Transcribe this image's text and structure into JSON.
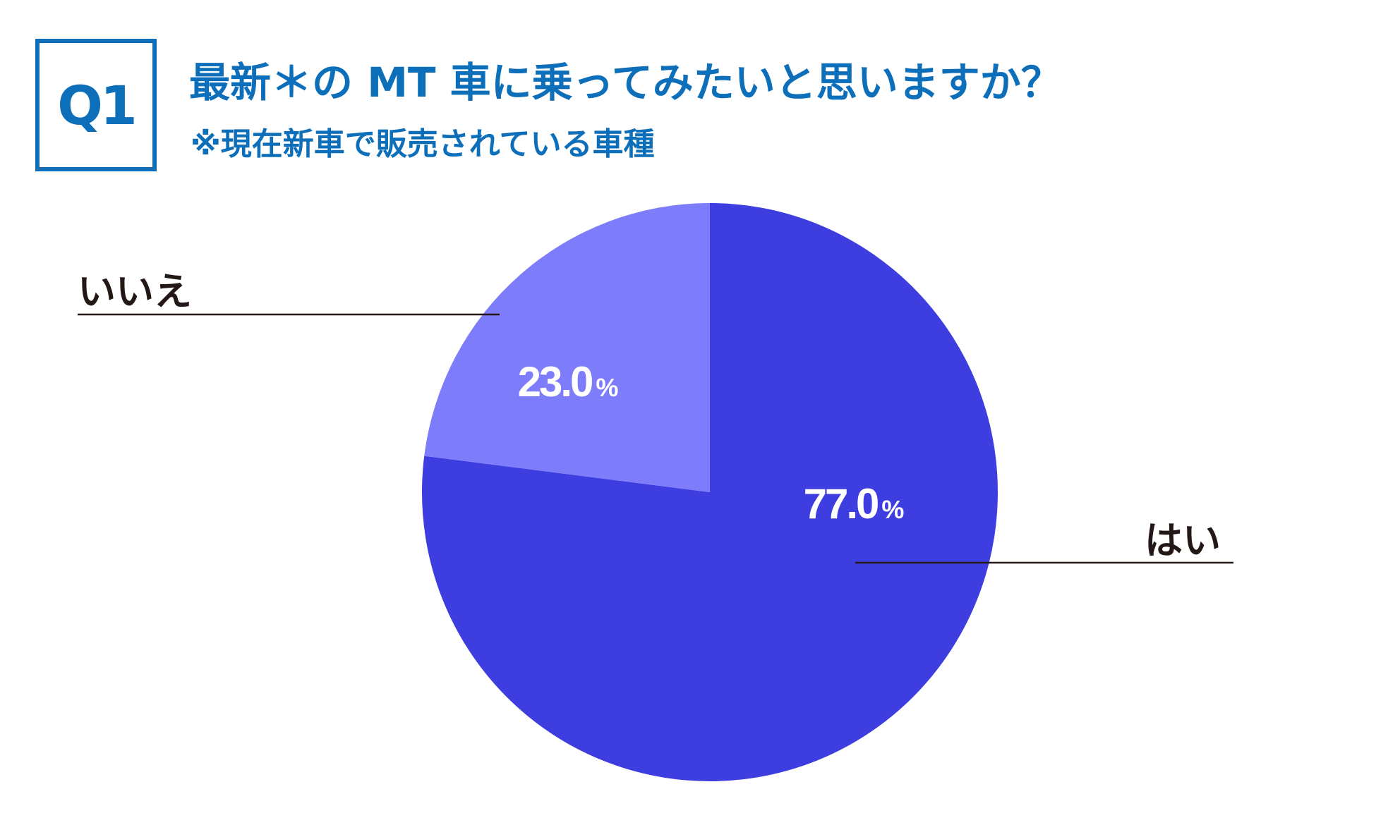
{
  "header": {
    "badge": "Q1",
    "title": "最新＊の MT 車に乗ってみたいと思いますか？",
    "subtitle": "※現在新車で販売されている車種"
  },
  "colors": {
    "accent": "#0d6fba",
    "slice_yes": "#3e3de0",
    "slice_no": "#7d7cfb",
    "label_text": "#231815",
    "leader_line": "#231815"
  },
  "chart_data": {
    "type": "pie",
    "start_angle_deg": 0,
    "direction": "clockwise",
    "unit": "%",
    "slices": [
      {
        "label": "はい",
        "value": 77.0,
        "display": "77.0",
        "color": "#3e3de0"
      },
      {
        "label": "いいえ",
        "value": 23.0,
        "display": "23.0",
        "color": "#7d7cfb"
      }
    ]
  }
}
